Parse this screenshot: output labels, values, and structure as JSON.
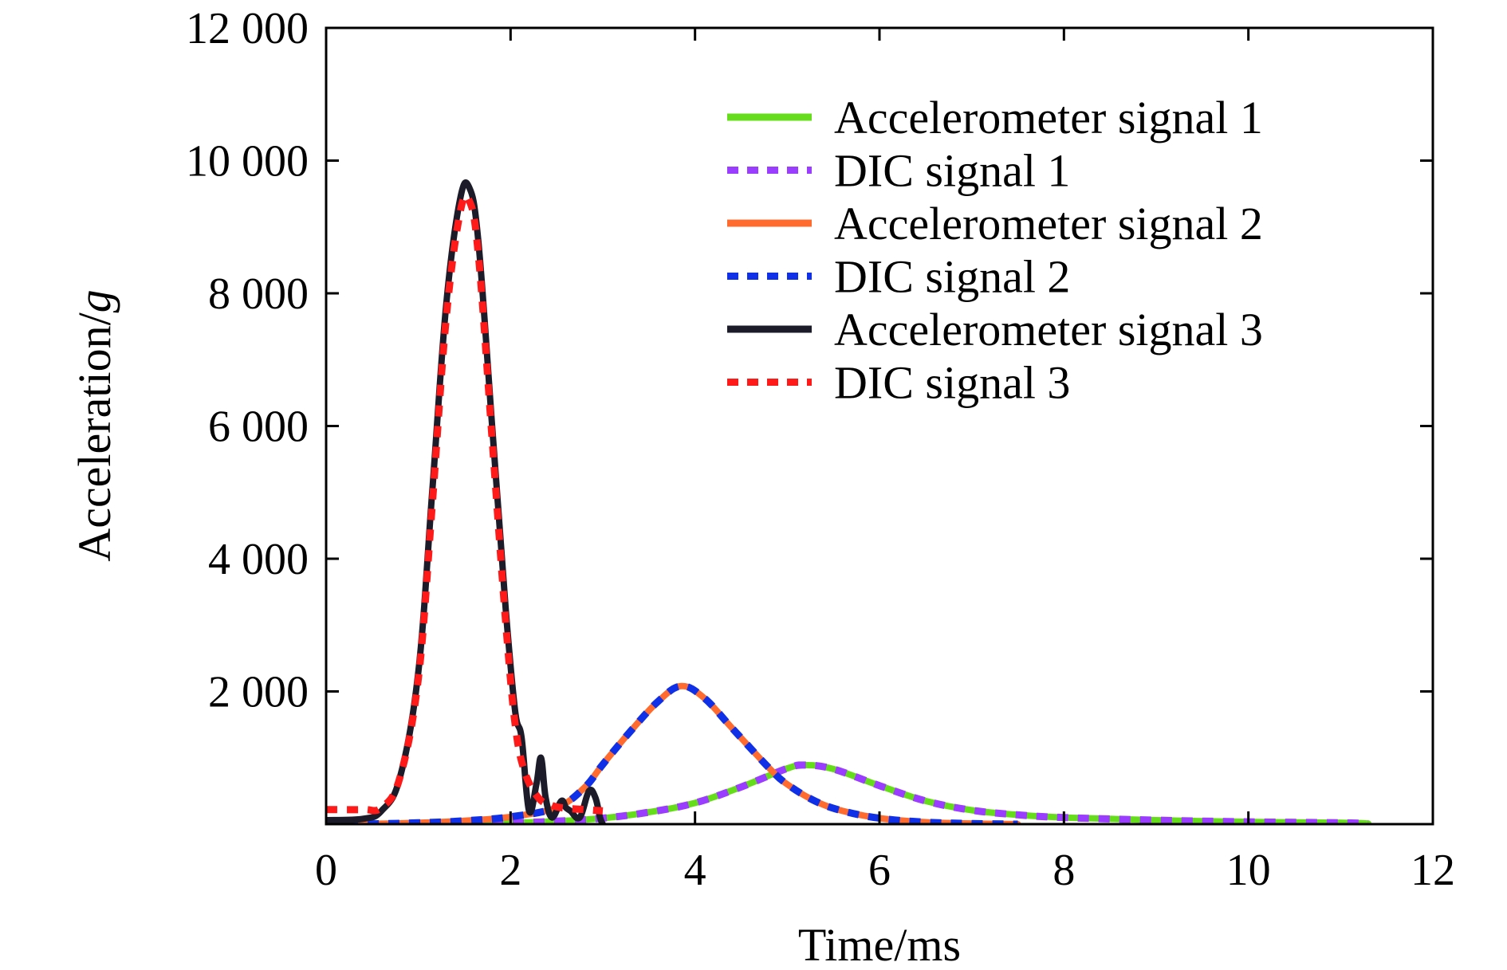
{
  "chart_data": {
    "type": "line",
    "title": "",
    "xlabel": "Time/ms",
    "ylabel": {
      "main": "Acceleration/",
      "italic": "g"
    },
    "xlim": [
      0,
      12
    ],
    "ylim": [
      0,
      12000
    ],
    "xticks": [
      0,
      2,
      4,
      6,
      8,
      10,
      12
    ],
    "xtick_labels": [
      "0",
      "2",
      "4",
      "6",
      "8",
      "10",
      "12"
    ],
    "yticks": [
      2000,
      4000,
      6000,
      8000,
      10000,
      12000
    ],
    "ytick_labels": [
      "2 000",
      "4 000",
      "6 000",
      "8 000",
      "10 000",
      "12 000"
    ],
    "grid": false,
    "legend_position": "top-right",
    "series": [
      {
        "name": "Accelerometer signal 1",
        "color": "#66dd1a",
        "style": "solid",
        "x": [
          0.0,
          1.0,
          2.0,
          2.5,
          3.0,
          3.5,
          4.0,
          4.5,
          5.0,
          5.2,
          5.5,
          6.0,
          6.5,
          7.0,
          7.5,
          8.0,
          9.0,
          10.0,
          11.0,
          11.3
        ],
        "y": [
          0,
          5,
          20,
          45,
          90,
          180,
          320,
          560,
          840,
          890,
          830,
          580,
          350,
          210,
          140,
          100,
          60,
          35,
          20,
          10
        ]
      },
      {
        "name": "DIC signal 1",
        "color": "#9a3dff",
        "style": "dashed",
        "x": [
          0.0,
          1.0,
          2.0,
          2.5,
          3.0,
          3.5,
          4.0,
          4.5,
          5.0,
          5.2,
          5.5,
          6.0,
          6.5,
          7.0,
          7.5,
          8.0,
          9.0,
          10.0,
          11.0,
          11.3
        ],
        "y": [
          0,
          5,
          20,
          45,
          90,
          180,
          320,
          560,
          840,
          890,
          830,
          580,
          350,
          210,
          140,
          100,
          60,
          35,
          20,
          10
        ]
      },
      {
        "name": "Accelerometer signal 2",
        "color": "#ff6a2e",
        "style": "solid",
        "x": [
          0.0,
          0.5,
          1.0,
          1.5,
          2.0,
          2.5,
          2.8,
          3.0,
          3.3,
          3.6,
          3.85,
          4.1,
          4.4,
          4.8,
          5.0,
          5.3,
          5.6,
          6.0,
          6.5,
          7.0,
          7.5
        ],
        "y": [
          0,
          5,
          20,
          50,
          110,
          250,
          550,
          900,
          1400,
          1850,
          2080,
          1900,
          1450,
          850,
          600,
          350,
          200,
          90,
          30,
          10,
          0
        ]
      },
      {
        "name": "DIC signal 2",
        "color": "#1030e8",
        "style": "dashed",
        "x": [
          0.0,
          0.5,
          1.0,
          1.5,
          2.0,
          2.5,
          2.8,
          3.0,
          3.3,
          3.6,
          3.85,
          4.1,
          4.4,
          4.8,
          5.0,
          5.3,
          5.6,
          6.0,
          6.5,
          7.0,
          7.5
        ],
        "y": [
          0,
          5,
          20,
          50,
          110,
          250,
          550,
          900,
          1400,
          1850,
          2080,
          1900,
          1450,
          850,
          600,
          350,
          200,
          90,
          30,
          10,
          0
        ]
      },
      {
        "name": "Accelerometer signal 3",
        "color": "#1b1b29",
        "style": "solid",
        "x": [
          0.0,
          0.4,
          0.6,
          0.8,
          1.0,
          1.15,
          1.3,
          1.45,
          1.55,
          1.65,
          1.8,
          1.95,
          2.05,
          2.12,
          2.2,
          2.28,
          2.33,
          2.38,
          2.45,
          2.55,
          2.6,
          2.65,
          2.75,
          2.85,
          2.92,
          2.97,
          3.0
        ],
        "y": [
          60,
          80,
          200,
          700,
          2300,
          5000,
          7800,
          9400,
          9600,
          8800,
          6000,
          3200,
          1700,
          1300,
          200,
          600,
          1000,
          400,
          100,
          350,
          250,
          200,
          100,
          500,
          400,
          100,
          0
        ]
      },
      {
        "name": "DIC signal 3",
        "color": "#ff1a1a",
        "style": "dashed",
        "x": [
          0.0,
          0.4,
          0.6,
          0.8,
          1.0,
          1.15,
          1.3,
          1.45,
          1.55,
          1.65,
          1.8,
          1.95,
          2.05,
          2.15,
          2.3,
          2.45,
          2.6,
          2.8,
          3.0
        ],
        "y": [
          220,
          220,
          250,
          700,
          2200,
          4800,
          7600,
          9200,
          9400,
          8600,
          5800,
          3000,
          1500,
          800,
          400,
          280,
          240,
          220,
          200
        ]
      }
    ]
  }
}
